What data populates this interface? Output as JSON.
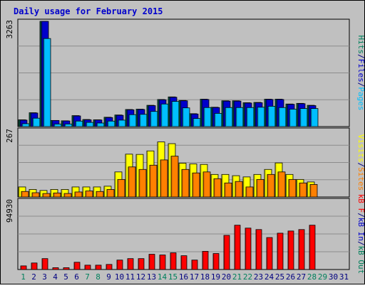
{
  "chart_data": [
    {
      "type": "bar",
      "title": "Daily usage for February 2015",
      "days": [
        "1",
        "2",
        "3",
        "4",
        "5",
        "6",
        "7",
        "8",
        "9",
        "10",
        "11",
        "12",
        "13",
        "14",
        "15",
        "16",
        "17",
        "18",
        "19",
        "20",
        "21",
        "22",
        "23",
        "24",
        "25",
        "26",
        "27",
        "28",
        "29",
        "30",
        "31"
      ],
      "weekend_days": [
        "1",
        "7",
        "8",
        "14",
        "15",
        "21",
        "22",
        "28",
        "29"
      ],
      "weekend_day_color": "#00805C",
      "weekday_color": "#000080",
      "panels": [
        {
          "name": "hits-files-pages",
          "ymax_label": "3263",
          "ylim": [
            0,
            3263
          ],
          "axis_labels": [
            "Hits",
            "/",
            "Files",
            "/",
            "Pages"
          ],
          "axis_label_colors": [
            "#00805C",
            "#000080",
            "#0000CC",
            "#000080",
            "#00BFFF"
          ],
          "series": [
            {
              "name": "Hits",
              "color": "#00805C",
              "values": [
                210,
                430,
                3263,
                190,
                180,
                340,
                220,
                210,
                290,
                360,
                530,
                540,
                660,
                840,
                920,
                810,
                400,
                850,
                600,
                800,
                800,
                740,
                750,
                850,
                850,
                700,
                720,
                660,
                0,
                0,
                0
              ]
            },
            {
              "name": "Files",
              "color": "#0000CC",
              "values": [
                200,
                420,
                3263,
                190,
                175,
                330,
                210,
                205,
                280,
                350,
                520,
                530,
                650,
                830,
                910,
                800,
                390,
                840,
                590,
                790,
                790,
                730,
                740,
                840,
                840,
                690,
                710,
                650,
                0,
                0,
                0
              ]
            },
            {
              "name": "Pages",
              "color": "#00BFFF",
              "values": [
                90,
                260,
                2730,
                80,
                80,
                170,
                130,
                110,
                170,
                200,
                370,
                380,
                470,
                700,
                780,
                580,
                250,
                590,
                410,
                590,
                590,
                590,
                600,
                630,
                590,
                540,
                560,
                560,
                0,
                0,
                0
              ]
            }
          ]
        },
        {
          "name": "visits-sites",
          "ymax_label": "267",
          "ylim": [
            0,
            267
          ],
          "axis_labels": [
            "Visits",
            "/",
            "Sites"
          ],
          "axis_label_colors": [
            "#FFFF00",
            "#000080",
            "#FF8000"
          ],
          "series": [
            {
              "name": "Visits",
              "color": "#FFFF00",
              "values": [
                40,
                30,
                26,
                30,
                30,
                40,
                40,
                40,
                43,
                100,
                171,
                170,
                184,
                220,
                213,
                135,
                132,
                130,
                90,
                90,
                85,
                80,
                90,
                110,
                136,
                90,
                70,
                60,
                0,
                0,
                0
              ]
            },
            {
              "name": "Sites",
              "color": "#FF8000",
              "values": [
                22,
                17,
                14,
                16,
                14,
                20,
                24,
                22,
                30,
                70,
                120,
                110,
                127,
                148,
                163,
                110,
                96,
                100,
                73,
                56,
                62,
                40,
                70,
                90,
                100,
                70,
                56,
                50,
                0,
                0,
                0
              ]
            }
          ]
        },
        {
          "name": "kbytes",
          "ymax_label": "94930",
          "ylim": [
            0,
            94930
          ],
          "axis_labels": [
            "kB F",
            "/",
            "kB In",
            "/",
            "kB Out"
          ],
          "axis_label_colors": [
            "#FF0000",
            "#000080",
            "#0000CC",
            "#000080",
            "#00805C"
          ],
          "series": [
            {
              "name": "kB F",
              "color": "#FF0000",
              "values": [
                5000,
                9000,
                15000,
                2500,
                2500,
                10000,
                6000,
                6000,
                7000,
                13000,
                15000,
                15000,
                21000,
                20000,
                23000,
                19000,
                13000,
                25000,
                22000,
                47000,
                61000,
                57000,
                55000,
                44000,
                50000,
                53000,
                55000,
                61000,
                0,
                0,
                0
              ]
            }
          ]
        }
      ]
    }
  ]
}
